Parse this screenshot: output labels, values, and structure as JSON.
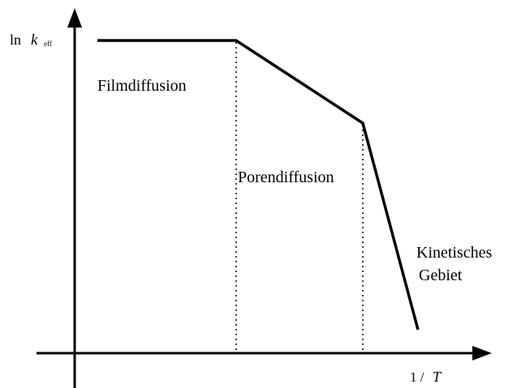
{
  "axes": {
    "y_label": {
      "prefix": "ln",
      "symbol": "k",
      "subscript": "eff"
    },
    "x_label": {
      "prefix": "1 /",
      "symbol": "T"
    }
  },
  "regions": [
    {
      "label": "Filmdiffusion"
    },
    {
      "label": "Porendiffusion"
    },
    {
      "label": [
        "Kinetisches",
        "Gebiet"
      ]
    }
  ]
}
